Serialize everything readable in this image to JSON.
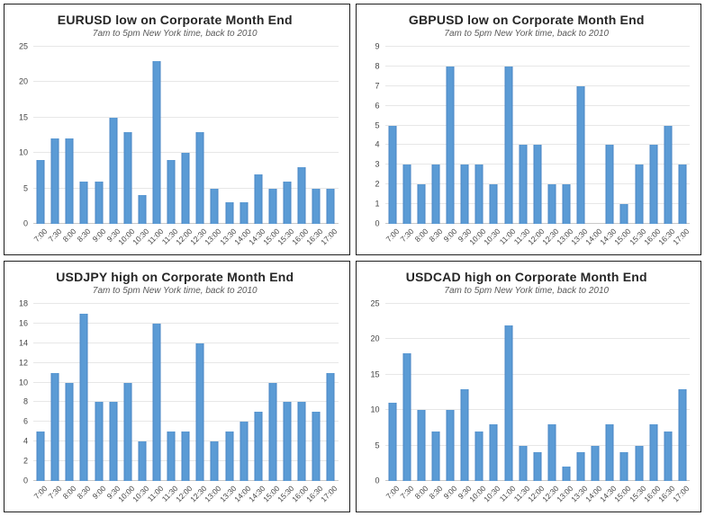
{
  "theme": {
    "background": "#FFFFFF",
    "panel_border": "#1F1F1F",
    "bar_fill": "#5B9BD5",
    "bar_edge": "#4A84C4",
    "gridline": "#E7E7E7",
    "axis_line": "#C9C9C9",
    "title_color": "#262626",
    "subtitle_color": "#595959",
    "tick_color": "#444444"
  },
  "chart_data": [
    {
      "type": "bar",
      "title": "EURUSD low on Corporate Month End",
      "subtitle": "7am to 5pm New York time, back to 2010",
      "categories": [
        "7:00",
        "7:30",
        "8:00",
        "8:30",
        "9:00",
        "9:30",
        "10:00",
        "10:30",
        "11:00",
        "11:30",
        "12:00",
        "12:30",
        "13:00",
        "13:30",
        "14:00",
        "14:30",
        "15:00",
        "15:30",
        "16:00",
        "16:30",
        "17:00"
      ],
      "values": [
        9,
        12,
        12,
        6,
        6,
        15,
        13,
        4,
        23,
        9,
        10,
        13,
        5,
        3,
        3,
        7,
        5,
        6,
        8,
        5,
        5
      ],
      "xlabel": "",
      "ylabel": "",
      "ylim": [
        0,
        25
      ],
      "yticks": [
        0,
        5,
        10,
        15,
        20,
        25
      ],
      "grid": true,
      "legend": "none"
    },
    {
      "type": "bar",
      "title": "GBPUSD low on Corporate Month End",
      "subtitle": "7am to 5pm New York time, back to 2010",
      "categories": [
        "7:00",
        "7:30",
        "8:00",
        "8:30",
        "9:00",
        "9:30",
        "10:00",
        "10:30",
        "11:00",
        "11:30",
        "12:00",
        "12:30",
        "13:00",
        "13:30",
        "14:00",
        "14:30",
        "15:00",
        "15:30",
        "16:00",
        "16:30",
        "17:00"
      ],
      "values": [
        5,
        3,
        2,
        3,
        8,
        3,
        3,
        2,
        8,
        4,
        4,
        2,
        2,
        7,
        0,
        4,
        1,
        3,
        4,
        5,
        3
      ],
      "xlabel": "",
      "ylabel": "",
      "ylim": [
        0,
        9
      ],
      "yticks": [
        0,
        1,
        2,
        3,
        4,
        5,
        6,
        7,
        8,
        9
      ],
      "grid": true,
      "legend": "none"
    },
    {
      "type": "bar",
      "title": "USDJPY high on Corporate Month End",
      "subtitle": "7am to 5pm New York time, back to 2010",
      "categories": [
        "7:00",
        "7:30",
        "8:00",
        "8:30",
        "9:00",
        "9:30",
        "10:00",
        "10:30",
        "11:00",
        "11:30",
        "12:00",
        "12:30",
        "13:00",
        "13:30",
        "14:00",
        "14:30",
        "15:00",
        "15:30",
        "16:00",
        "16:30",
        "17:00"
      ],
      "values": [
        5,
        11,
        10,
        17,
        8,
        8,
        10,
        4,
        16,
        5,
        5,
        14,
        4,
        5,
        6,
        7,
        10,
        8,
        8,
        7,
        11
      ],
      "xlabel": "",
      "ylabel": "",
      "ylim": [
        0,
        18
      ],
      "yticks": [
        0,
        2,
        4,
        6,
        8,
        10,
        12,
        14,
        16,
        18
      ],
      "grid": true,
      "legend": "none"
    },
    {
      "type": "bar",
      "title": "USDCAD high on Corporate Month End",
      "subtitle": "7am to 5pm New York time, back to 2010",
      "categories": [
        "7:00",
        "7:30",
        "8:00",
        "8:30",
        "9:00",
        "9:30",
        "10:00",
        "10:30",
        "11:00",
        "11:30",
        "12:00",
        "12:30",
        "13:00",
        "13:30",
        "14:00",
        "14:30",
        "15:00",
        "15:30",
        "16:00",
        "16:30",
        "17:00"
      ],
      "values": [
        11,
        18,
        10,
        7,
        10,
        13,
        7,
        8,
        22,
        5,
        4,
        8,
        2,
        4,
        5,
        8,
        4,
        5,
        8,
        7,
        13
      ],
      "xlabel": "",
      "ylabel": "",
      "ylim": [
        0,
        25
      ],
      "yticks": [
        0,
        5,
        10,
        15,
        20,
        25
      ],
      "grid": true,
      "legend": "none"
    }
  ]
}
